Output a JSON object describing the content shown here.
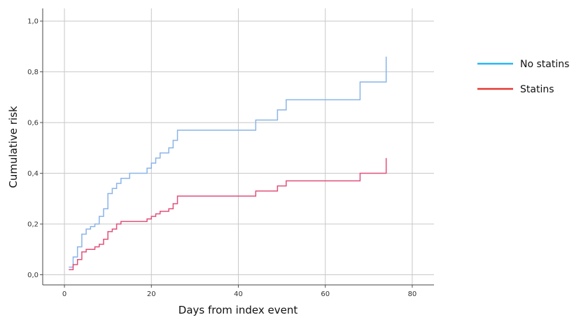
{
  "chart_data": {
    "type": "line",
    "title": "",
    "xlabel": "Days from index event",
    "ylabel": "Cumulative risk",
    "xlim": [
      -5,
      85
    ],
    "ylim": [
      -0.04,
      1.05
    ],
    "x_ticks": [
      0,
      20,
      40,
      60,
      80
    ],
    "x_tick_labels": [
      "0",
      "20",
      "40",
      "60",
      "80"
    ],
    "y_ticks": [
      0.0,
      0.2,
      0.4,
      0.6,
      0.8,
      1.0
    ],
    "y_tick_labels": [
      "0,0",
      "0,2",
      "0,4",
      "0,6",
      "0,8",
      "1,0"
    ],
    "grid": true,
    "legend_position": "right",
    "series": [
      {
        "name": "No statins",
        "color": "#8ab4e8",
        "legend_color": "#29b6f6",
        "step": true,
        "x": [
          1,
          2,
          3,
          4,
          5,
          6,
          7,
          8,
          9,
          10,
          11,
          12,
          13,
          15,
          19,
          20,
          21,
          22,
          24,
          25,
          26,
          44,
          49,
          51,
          68,
          74,
          74
        ],
        "y": [
          0.03,
          0.07,
          0.11,
          0.16,
          0.18,
          0.19,
          0.2,
          0.23,
          0.26,
          0.32,
          0.34,
          0.36,
          0.38,
          0.4,
          0.42,
          0.44,
          0.46,
          0.48,
          0.5,
          0.53,
          0.57,
          0.61,
          0.65,
          0.69,
          0.76,
          0.76,
          0.86
        ]
      },
      {
        "name": "Statins",
        "color": "#e0507a",
        "legend_color": "#e53935",
        "step": true,
        "x": [
          1,
          2,
          3,
          4,
          5,
          6,
          7,
          8,
          9,
          10,
          11,
          12,
          13,
          15,
          19,
          20,
          21,
          22,
          24,
          25,
          26,
          44,
          49,
          51,
          68,
          74,
          74
        ],
        "y": [
          0.02,
          0.04,
          0.06,
          0.09,
          0.1,
          0.1,
          0.11,
          0.12,
          0.14,
          0.17,
          0.18,
          0.2,
          0.21,
          0.21,
          0.22,
          0.23,
          0.24,
          0.25,
          0.26,
          0.28,
          0.31,
          0.33,
          0.35,
          0.37,
          0.4,
          0.4,
          0.46
        ]
      }
    ]
  }
}
